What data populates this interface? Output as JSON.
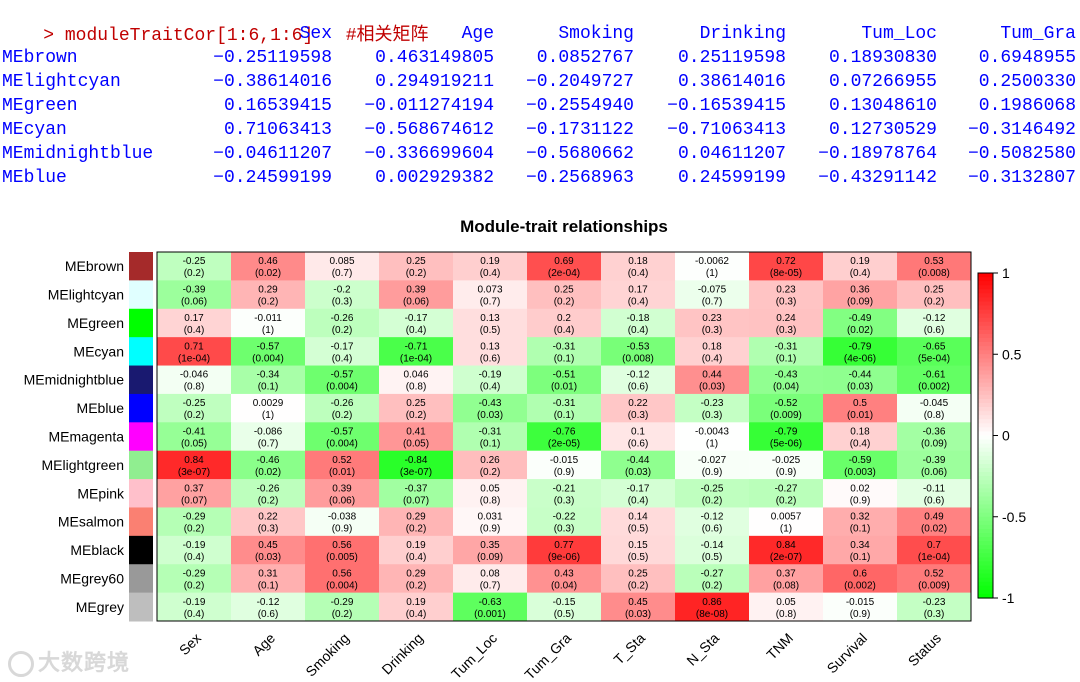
{
  "console": {
    "prompt": ">",
    "command": "moduleTraitCor[1:6,1:6]",
    "comment": "#相关矩阵",
    "columns": [
      "Sex",
      "Age",
      "Smoking",
      "Drinking",
      "Tum_Loc",
      "Tum_Gra"
    ],
    "rows": [
      {
        "name": "MEbrown",
        "values": [
          "-0.25119598",
          "0.463149805",
          "0.0852767",
          "0.25119598",
          "0.18930830",
          "0.6948955"
        ]
      },
      {
        "name": "MElightcyan",
        "values": [
          "-0.38614016",
          "0.294919211",
          "-0.2049727",
          "0.38614016",
          "0.07266955",
          "0.2500330"
        ]
      },
      {
        "name": "MEgreen",
        "values": [
          "0.16539415",
          "-0.011274194",
          "-0.2554940",
          "-0.16539415",
          "0.13048610",
          "0.1986068"
        ]
      },
      {
        "name": "MEcyan",
        "values": [
          "0.71063413",
          "-0.568674612",
          "-0.1731122",
          "-0.71063413",
          "0.12730529",
          "-0.3146492"
        ]
      },
      {
        "name": "MEmidnightblue",
        "values": [
          "-0.04611207",
          "-0.336699604",
          "-0.5680662",
          "0.04611207",
          "-0.18978764",
          "-0.5082580"
        ]
      },
      {
        "name": "MEblue",
        "values": [
          "-0.24599199",
          "0.002929382",
          "-0.2568963",
          "0.24599199",
          "-0.43291142",
          "-0.3132807"
        ]
      }
    ]
  },
  "watermark": "大数跨境",
  "chart_data": {
    "type": "heatmap",
    "title": "Module-trait relationships",
    "columns": [
      "Sex",
      "Age",
      "Smoking",
      "Drinking",
      "Tum_Loc",
      "Tum_Gra",
      "T_Sta",
      "N_Sta",
      "TNM",
      "Survival",
      "Status"
    ],
    "rows": [
      {
        "name": "MEbrown",
        "color": "#a52a2a",
        "cor": [
          "-0.25",
          "0.46",
          "0.085",
          "0.25",
          "0.19",
          "0.69",
          "0.18",
          "-0.0062",
          "0.72",
          "0.19",
          "0.53"
        ],
        "p": [
          "(0.2)",
          "(0.02)",
          "(0.7)",
          "(0.2)",
          "(0.4)",
          "(2e-04)",
          "(0.4)",
          "(1)",
          "(8e-05)",
          "(0.4)",
          "(0.008)"
        ]
      },
      {
        "name": "MElightcyan",
        "color": "#e0ffff",
        "cor": [
          "-0.39",
          "0.29",
          "-0.2",
          "0.39",
          "0.073",
          "0.25",
          "0.17",
          "-0.075",
          "0.23",
          "0.36",
          "0.25"
        ],
        "p": [
          "(0.06)",
          "(0.2)",
          "(0.3)",
          "(0.06)",
          "(0.7)",
          "(0.2)",
          "(0.4)",
          "(0.7)",
          "(0.3)",
          "(0.09)",
          "(0.2)"
        ]
      },
      {
        "name": "MEgreen",
        "color": "#00ff00",
        "cor": [
          "0.17",
          "-0.011",
          "-0.26",
          "-0.17",
          "0.13",
          "0.2",
          "-0.18",
          "0.23",
          "0.24",
          "-0.49",
          "-0.12"
        ],
        "p": [
          "(0.4)",
          "(1)",
          "(0.2)",
          "(0.4)",
          "(0.5)",
          "(0.4)",
          "(0.4)",
          "(0.3)",
          "(0.3)",
          "(0.02)",
          "(0.6)"
        ]
      },
      {
        "name": "MEcyan",
        "color": "#00ffff",
        "cor": [
          "0.71",
          "-0.57",
          "-0.17",
          "-0.71",
          "0.13",
          "-0.31",
          "-0.53",
          "0.18",
          "-0.31",
          "-0.79",
          "-0.65"
        ],
        "p": [
          "(1e-04)",
          "(0.004)",
          "(0.4)",
          "(1e-04)",
          "(0.6)",
          "(0.1)",
          "(0.008)",
          "(0.4)",
          "(0.1)",
          "(4e-06)",
          "(5e-04)"
        ]
      },
      {
        "name": "MEmidnightblue",
        "color": "#191970",
        "cor": [
          "-0.046",
          "-0.34",
          "-0.57",
          "0.046",
          "-0.19",
          "-0.51",
          "-0.12",
          "0.44",
          "-0.43",
          "-0.44",
          "-0.61"
        ],
        "p": [
          "(0.8)",
          "(0.1)",
          "(0.004)",
          "(0.8)",
          "(0.4)",
          "(0.01)",
          "(0.6)",
          "(0.03)",
          "(0.04)",
          "(0.03)",
          "(0.002)"
        ]
      },
      {
        "name": "MEblue",
        "color": "#0000ff",
        "cor": [
          "-0.25",
          "0.0029",
          "-0.26",
          "0.25",
          "-0.43",
          "-0.31",
          "0.22",
          "-0.23",
          "-0.52",
          "0.5",
          "-0.045"
        ],
        "p": [
          "(0.2)",
          "(1)",
          "(0.2)",
          "(0.2)",
          "(0.03)",
          "(0.1)",
          "(0.3)",
          "(0.3)",
          "(0.009)",
          "(0.01)",
          "(0.8)"
        ]
      },
      {
        "name": "MEmagenta",
        "color": "#ff00ff",
        "cor": [
          "-0.41",
          "-0.086",
          "-0.57",
          "0.41",
          "-0.31",
          "-0.76",
          "0.1",
          "-0.0043",
          "-0.79",
          "0.18",
          "-0.36"
        ],
        "p": [
          "(0.05)",
          "(0.7)",
          "(0.004)",
          "(0.05)",
          "(0.1)",
          "(2e-05)",
          "(0.6)",
          "(1)",
          "(5e-06)",
          "(0.4)",
          "(0.09)"
        ]
      },
      {
        "name": "MElightgreen",
        "color": "#90ee90",
        "cor": [
          "0.84",
          "-0.46",
          "0.52",
          "-0.84",
          "0.26",
          "-0.015",
          "-0.44",
          "-0.027",
          "-0.025",
          "-0.59",
          "-0.39"
        ],
        "p": [
          "(3e-07)",
          "(0.02)",
          "(0.01)",
          "(3e-07)",
          "(0.2)",
          "(0.9)",
          "(0.03)",
          "(0.9)",
          "(0.9)",
          "(0.003)",
          "(0.06)"
        ]
      },
      {
        "name": "MEpink",
        "color": "#ffc0cb",
        "cor": [
          "0.37",
          "-0.26",
          "0.39",
          "-0.37",
          "0.05",
          "-0.21",
          "-0.17",
          "-0.25",
          "-0.27",
          "0.02",
          "-0.11"
        ],
        "p": [
          "(0.07)",
          "(0.2)",
          "(0.06)",
          "(0.07)",
          "(0.8)",
          "(0.3)",
          "(0.4)",
          "(0.2)",
          "(0.2)",
          "(0.9)",
          "(0.6)"
        ]
      },
      {
        "name": "MEsalmon",
        "color": "#fa8072",
        "cor": [
          "-0.29",
          "0.22",
          "-0.038",
          "0.29",
          "0.031",
          "-0.22",
          "0.14",
          "-0.12",
          "0.0057",
          "0.32",
          "0.49"
        ],
        "p": [
          "(0.2)",
          "(0.3)",
          "(0.9)",
          "(0.2)",
          "(0.9)",
          "(0.3)",
          "(0.5)",
          "(0.6)",
          "(1)",
          "(0.1)",
          "(0.02)"
        ]
      },
      {
        "name": "MEblack",
        "color": "#000000",
        "cor": [
          "-0.19",
          "0.45",
          "0.56",
          "0.19",
          "0.35",
          "0.77",
          "0.15",
          "-0.14",
          "0.84",
          "0.34",
          "0.7"
        ],
        "p": [
          "(0.4)",
          "(0.03)",
          "(0.005)",
          "(0.4)",
          "(0.09)",
          "(9e-06)",
          "(0.5)",
          "(0.5)",
          "(2e-07)",
          "(0.1)",
          "(1e-04)"
        ]
      },
      {
        "name": "MEgrey60",
        "color": "#999999",
        "cor": [
          "-0.29",
          "0.31",
          "0.56",
          "0.29",
          "0.08",
          "0.43",
          "0.25",
          "-0.27",
          "0.37",
          "0.6",
          "0.52"
        ],
        "p": [
          "(0.2)",
          "(0.1)",
          "(0.004)",
          "(0.2)",
          "(0.7)",
          "(0.04)",
          "(0.2)",
          "(0.2)",
          "(0.08)",
          "(0.002)",
          "(0.009)"
        ]
      },
      {
        "name": "MEgrey",
        "color": "#bebebe",
        "cor": [
          "-0.19",
          "-0.12",
          "-0.29",
          "0.19",
          "-0.63",
          "-0.15",
          "0.45",
          "0.86",
          "0.05",
          "-0.015",
          "-0.23"
        ],
        "p": [
          "(0.4)",
          "(0.6)",
          "(0.2)",
          "(0.4)",
          "(0.001)",
          "(0.5)",
          "(0.03)",
          "(8e-08)",
          "(0.8)",
          "(0.9)",
          "(0.3)"
        ]
      }
    ],
    "colorbar": {
      "min": -1,
      "max": 1,
      "ticks": [
        "1",
        "0.5",
        "0",
        "-0.5",
        "-1"
      ],
      "low_color": "#00ff00",
      "mid_color": "#ffffff",
      "high_color": "#ff0000"
    }
  }
}
